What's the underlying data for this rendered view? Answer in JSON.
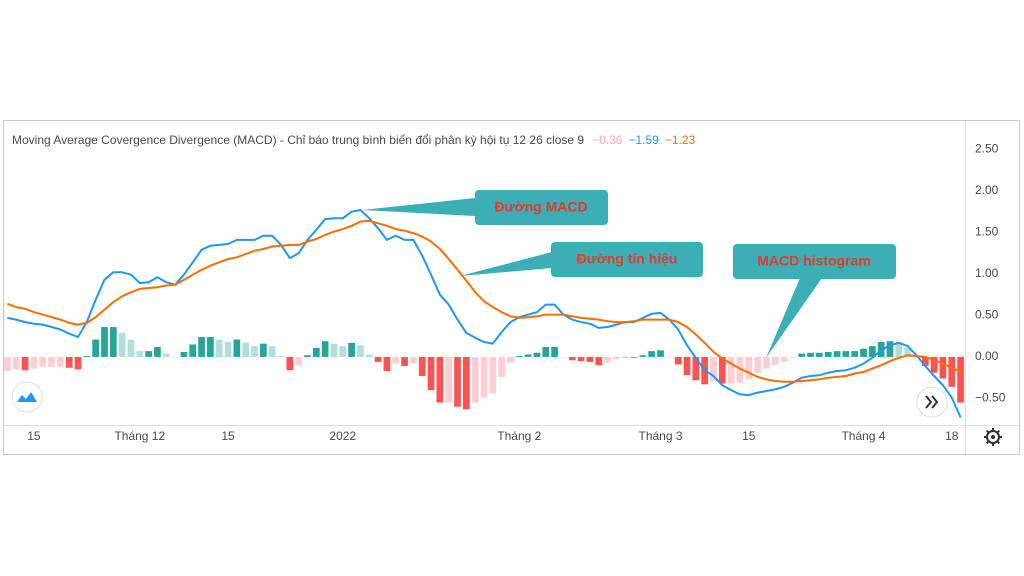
{
  "chart_data": {
    "type": "macd",
    "title": "Moving Average Covergence Divergence (MACD) - Chỉ báo trung bình biến đổi phân kỳ hội tụ 12 26 close 9",
    "categories": [
      null,
      null,
      null,
      "15",
      null,
      null,
      null,
      null,
      null,
      null,
      null,
      null,
      null,
      null,
      null,
      "Tháng 12",
      null,
      null,
      null,
      null,
      null,
      null,
      null,
      null,
      null,
      "15",
      null,
      null,
      null,
      null,
      null,
      null,
      null,
      null,
      null,
      null,
      null,
      null,
      "2022",
      null,
      null,
      null,
      null,
      null,
      null,
      null,
      null,
      null,
      null,
      null,
      null,
      null,
      null,
      null,
      null,
      null,
      null,
      null,
      "Tháng 2",
      null,
      null,
      null,
      null,
      null,
      null,
      null,
      null,
      null,
      null,
      null,
      null,
      null,
      null,
      null,
      "Tháng 3",
      null,
      null,
      null,
      null,
      null,
      null,
      null,
      null,
      null,
      "15",
      null,
      null,
      null,
      null,
      null,
      null,
      null,
      null,
      null,
      null,
      null,
      null,
      "Tháng 4",
      null,
      null,
      null,
      null,
      null,
      null,
      null,
      null,
      null,
      "18",
      null
    ],
    "ylim": [
      -0.82,
      2.83
    ],
    "yticks": [
      {
        "value": 2.5,
        "label": "2.50"
      },
      {
        "value": 2,
        "label": "2.00"
      },
      {
        "value": 1.5,
        "label": "1.50"
      },
      {
        "value": 1,
        "label": "1.00"
      },
      {
        "value": 0.5,
        "label": "0.50"
      },
      {
        "value": 0,
        "label": "0.00"
      },
      {
        "value": -0.5,
        "label": "−0.50"
      }
    ],
    "series": [
      {
        "type": "histogram",
        "legend_value": {
          "value": -0.36,
          "label": "−0.36"
        },
        "color": "#f7a9ad",
        "colors": {
          "grow_above": "#26a69a",
          "fall_above": "#b2dfdb",
          "grow_below": "#ffcdd2",
          "fall_below": "#ff5252"
        },
        "values": [
          -0.17,
          -0.15,
          -0.16,
          -0.14,
          -0.12,
          -0.12,
          -0.12,
          -0.13,
          -0.15,
          0.01,
          0.21,
          0.36,
          0.36,
          0.29,
          0.21,
          0.07,
          0.07,
          0.12,
          0.04,
          0.0,
          0.06,
          0.15,
          0.24,
          0.24,
          0.21,
          0.18,
          0.21,
          0.17,
          0.13,
          0.16,
          0.13,
          0.01,
          -0.16,
          -0.1,
          0.02,
          0.11,
          0.19,
          0.16,
          0.13,
          0.17,
          0.14,
          0.03,
          -0.06,
          -0.17,
          -0.08,
          -0.11,
          -0.08,
          -0.23,
          -0.4,
          -0.55,
          -0.55,
          -0.6,
          -0.63,
          -0.55,
          -0.49,
          -0.44,
          -0.24,
          -0.07,
          0.01,
          0.03,
          0.05,
          0.12,
          0.12,
          0.0,
          -0.04,
          -0.05,
          -0.06,
          -0.1,
          -0.07,
          -0.03,
          0.0,
          -0.01,
          0.02,
          0.07,
          0.08,
          0.0,
          -0.09,
          -0.22,
          -0.28,
          -0.33,
          -0.29,
          -0.32,
          -0.32,
          -0.31,
          -0.27,
          -0.19,
          -0.14,
          -0.1,
          -0.06,
          -0.01,
          0.04,
          0.05,
          0.05,
          0.06,
          0.07,
          0.07,
          0.07,
          0.1,
          0.13,
          0.18,
          0.19,
          0.18,
          0.11,
          0.01,
          -0.11,
          -0.19,
          -0.26,
          -0.36,
          -0.55
        ]
      },
      {
        "type": "line",
        "legend_value": {
          "value": -1.59,
          "label": "−1.59"
        },
        "color": "#2196f3",
        "values": [
          0.47,
          0.45,
          0.42,
          0.4,
          0.39,
          0.36,
          0.33,
          0.28,
          0.24,
          0.42,
          0.69,
          0.93,
          1.02,
          1.02,
          0.99,
          0.89,
          0.9,
          0.96,
          0.9,
          0.87,
          0.99,
          1.14,
          1.29,
          1.34,
          1.35,
          1.36,
          1.41,
          1.41,
          1.41,
          1.46,
          1.46,
          1.35,
          1.19,
          1.25,
          1.41,
          1.53,
          1.66,
          1.67,
          1.67,
          1.75,
          1.77,
          1.67,
          1.55,
          1.41,
          1.46,
          1.41,
          1.41,
          1.22,
          0.99,
          0.75,
          0.63,
          0.45,
          0.29,
          0.23,
          0.18,
          0.16,
          0.3,
          0.42,
          0.48,
          0.51,
          0.54,
          0.63,
          0.63,
          0.51,
          0.45,
          0.42,
          0.4,
          0.35,
          0.36,
          0.39,
          0.42,
          0.42,
          0.47,
          0.52,
          0.53,
          0.45,
          0.33,
          0.14,
          -0.01,
          -0.16,
          -0.23,
          -0.34,
          -0.4,
          -0.45,
          -0.46,
          -0.43,
          -0.41,
          -0.39,
          -0.36,
          -0.31,
          -0.25,
          -0.23,
          -0.22,
          -0.19,
          -0.17,
          -0.16,
          -0.13,
          -0.08,
          -0.01,
          0.08,
          0.14,
          0.17,
          0.13,
          0.02,
          -0.11,
          -0.23,
          -0.34,
          -0.49,
          -0.73
        ]
      },
      {
        "type": "line",
        "legend_value": {
          "value": -1.23,
          "label": "−1.23"
        },
        "color": "#ff6d00",
        "values": [
          0.64,
          0.6,
          0.58,
          0.54,
          0.51,
          0.48,
          0.45,
          0.41,
          0.39,
          0.41,
          0.48,
          0.57,
          0.66,
          0.73,
          0.78,
          0.82,
          0.83,
          0.84,
          0.86,
          0.87,
          0.93,
          0.99,
          1.05,
          1.1,
          1.14,
          1.18,
          1.2,
          1.24,
          1.28,
          1.3,
          1.33,
          1.34,
          1.35,
          1.35,
          1.39,
          1.42,
          1.47,
          1.51,
          1.54,
          1.58,
          1.63,
          1.64,
          1.61,
          1.58,
          1.54,
          1.52,
          1.49,
          1.45,
          1.39,
          1.3,
          1.18,
          1.05,
          0.92,
          0.78,
          0.67,
          0.6,
          0.54,
          0.49,
          0.47,
          0.48,
          0.49,
          0.51,
          0.51,
          0.51,
          0.49,
          0.47,
          0.46,
          0.45,
          0.43,
          0.42,
          0.42,
          0.43,
          0.45,
          0.45,
          0.45,
          0.45,
          0.42,
          0.36,
          0.27,
          0.17,
          0.06,
          -0.02,
          -0.08,
          -0.14,
          -0.19,
          -0.24,
          -0.27,
          -0.29,
          -0.3,
          -0.3,
          -0.29,
          -0.28,
          -0.27,
          -0.25,
          -0.24,
          -0.23,
          -0.2,
          -0.18,
          -0.14,
          -0.1,
          -0.05,
          -0.01,
          0.02,
          0.01,
          0.0,
          -0.04,
          -0.08,
          -0.13,
          -0.18
        ]
      }
    ],
    "annotations": [
      {
        "text": "Đường MACD"
      },
      {
        "text": "Đường tín hiệu"
      },
      {
        "text": "MACD histogram"
      }
    ]
  }
}
